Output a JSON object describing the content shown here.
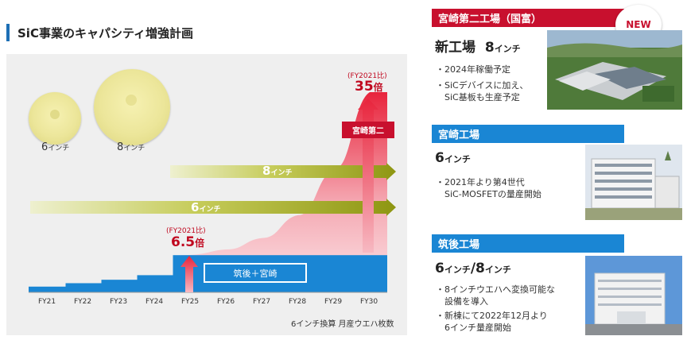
{
  "title": "SiC事業のキャパシティ増強計画",
  "chart": {
    "wafers": [
      {
        "label": "6",
        "unit": "インチ"
      },
      {
        "label": "8",
        "unit": "インチ"
      }
    ],
    "arrows": [
      {
        "label": "8",
        "unit": "インチ"
      },
      {
        "label": "6",
        "unit": "インチ"
      }
    ],
    "fy_labels": [
      "FY21",
      "FY22",
      "FY23",
      "FY24",
      "FY25",
      "FY26",
      "FY27",
      "FY28",
      "FY29",
      "FY30"
    ],
    "callout_small": {
      "note": "(FY2021比)",
      "value": "6.5",
      "unit": "倍"
    },
    "callout_big": {
      "note": "(FY2021比)",
      "value": "35",
      "unit": "倍"
    },
    "base_box": "筑後＋宮崎",
    "new_box": "宮崎第二",
    "footnote": "6インチ換算  月産ウエハ枚数",
    "colors": {
      "blue": "#1a86d4",
      "red": "#e8243c",
      "green": "#9aa212",
      "brand": "#c8102e"
    }
  },
  "chart_data": {
    "type": "area",
    "x": [
      "FY21",
      "FY22",
      "FY23",
      "FY24",
      "FY25",
      "FY26",
      "FY27",
      "FY28",
      "FY29",
      "FY30"
    ],
    "series": [
      {
        "name": "筑後＋宮崎",
        "values": [
          1,
          1.6,
          2.2,
          3,
          6.5,
          6.5,
          6.5,
          6.5,
          6.5,
          6.5
        ]
      },
      {
        "name": "宮崎第二",
        "values": [
          0,
          0,
          0,
          0,
          0,
          1,
          3,
          7,
          15,
          28.5
        ]
      }
    ],
    "annotations": [
      "(FY2021比) 6.5倍",
      "(FY2021比) 35倍"
    ],
    "legend": "none",
    "grid": false
  },
  "plants": [
    {
      "header": "宮崎第二工場（国富）",
      "badge": "NEW",
      "main": "新工場",
      "size": "8",
      "size_unit": "インチ",
      "bullets": [
        "・2024年稼働予定",
        "・SiCデバイスに加え、",
        "　SiC基板も生産予定"
      ]
    },
    {
      "header": "宮崎工場",
      "size": "6",
      "size_unit": "インチ",
      "bullets": [
        "・2021年より第4世代",
        "　SiC-MOSFETの量産開始"
      ]
    },
    {
      "header": "筑後工場",
      "size": "6",
      "size_unit": "インチ",
      "size2": "/8",
      "size2_unit": "インチ",
      "bullets": [
        "・8インチウエハへ変換可能な",
        "　設備を導入",
        "・新棟にて2022年12月より",
        "　6インチ量産開始"
      ]
    }
  ]
}
